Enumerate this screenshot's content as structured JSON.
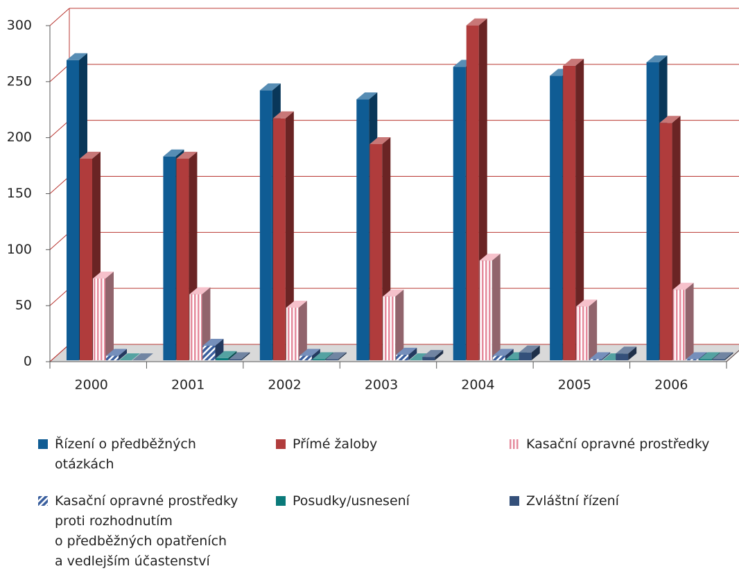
{
  "chart_data": {
    "type": "bar3d",
    "categories": [
      "2000",
      "2001",
      "2002",
      "2003",
      "2004",
      "2005",
      "2006"
    ],
    "ylim": [
      0,
      300
    ],
    "yticks": [
      0,
      50,
      100,
      150,
      200,
      250,
      300
    ],
    "grid": true,
    "legend": "bottom",
    "series": [
      {
        "name": "Řízení o předběžných\notázkách",
        "color": "#0f5c94",
        "values": [
          268,
          182,
          241,
          233,
          262,
          254,
          266
        ]
      },
      {
        "name": "Přímé žaloby",
        "color": "#b03c3c",
        "values": [
          180,
          180,
          216,
          193,
          299,
          263,
          212
        ]
      },
      {
        "name": "Kasační opravné prostředky",
        "color": "#f2a6b4",
        "pattern": "vertical-stripes",
        "values": [
          73,
          59,
          47,
          57,
          89,
          48,
          63
        ]
      },
      {
        "name": "Kasační opravné prostředky\nproti rozhodnutím\no předběžných opatřeních\na vedlejším účastenství",
        "color": "#3a5f9e",
        "pattern": "diagonal-stripes",
        "values": [
          4,
          13,
          4,
          5,
          4,
          1,
          1
        ]
      },
      {
        "name": "Posudky/usnesení",
        "color": "#0a7a7a",
        "values": [
          0,
          2,
          1,
          0,
          1,
          0,
          1
        ]
      },
      {
        "name": "Zvláštní řízení",
        "color": "#34507a",
        "values": [
          0,
          1,
          1,
          3,
          7,
          6,
          1
        ]
      }
    ]
  }
}
